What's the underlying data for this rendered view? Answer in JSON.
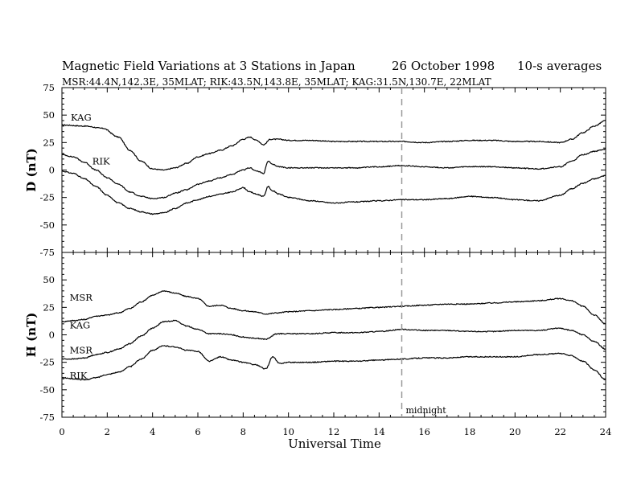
{
  "header": {
    "title_main": "Magnetic Field Variations at 3 Stations in Japan",
    "title_date": "26 October 1998",
    "title_avg": "10-s averages",
    "subtitle": "MSR:44.4N,142.3E, 35MLAT;  RIK:43.5N,143.8E, 35MLAT;  KAG:31.5N,130.7E, 22MLAT"
  },
  "chart_data": {
    "type": "line",
    "xlabel": "Universal Time",
    "xlim": [
      0,
      24
    ],
    "xticks": [
      0,
      2,
      4,
      6,
      8,
      10,
      12,
      14,
      16,
      18,
      20,
      22,
      24
    ],
    "annotation": {
      "text": "midnight",
      "x": 15
    },
    "panels": [
      {
        "id": "D",
        "ylabel": "D (nT)",
        "ylim": [
          -75,
          75
        ],
        "yticks": [
          75,
          50,
          25,
          0,
          -25,
          -50,
          -75
        ],
        "series": [
          {
            "name": "KAG",
            "x": [
              0,
              1,
              1.8,
              2.5,
              3,
              3.5,
              4,
              4.5,
              5,
              5.5,
              6,
              6.5,
              7,
              7.5,
              8,
              8.3,
              8.6,
              8.9,
              9.2,
              9.6,
              10,
              11,
              12,
              13,
              14,
              15,
              16,
              17,
              18,
              19,
              20,
              21,
              22,
              22.5,
              23,
              23.5,
              24
            ],
            "y": [
              41,
              40,
              38,
              30,
              18,
              8,
              1,
              0,
              2,
              6,
              12,
              15,
              18,
              22,
              28,
              30,
              27,
              23,
              28,
              28,
              27,
              27,
              26,
              26,
              26,
              26,
              25,
              26,
              27,
              27,
              26,
              26,
              25,
              28,
              34,
              40,
              45
            ]
          },
          {
            "name": "RIK",
            "x": [
              0,
              0.5,
              1,
              1.5,
              2,
              2.5,
              3,
              3.5,
              4,
              4.5,
              5,
              5.5,
              6,
              6.5,
              7,
              7.5,
              8,
              8.3,
              8.6,
              8.9,
              9.1,
              9.3,
              9.6,
              10,
              11,
              12,
              13,
              14,
              15,
              16,
              17,
              18,
              19,
              20,
              21,
              22,
              22.5,
              23,
              23.5,
              24
            ],
            "y": [
              14,
              12,
              7,
              0,
              -7,
              -13,
              -20,
              -24,
              -26,
              -25,
              -21,
              -18,
              -13,
              -10,
              -7,
              -4,
              0,
              2,
              -1,
              -3,
              8,
              5,
              3,
              2,
              2,
              2,
              2,
              3,
              4,
              3,
              2,
              3,
              3,
              2,
              1,
              3,
              8,
              14,
              17,
              19
            ]
          },
          {
            "name": "MSR",
            "x": [
              0,
              0.5,
              1,
              1.5,
              2,
              2.5,
              3,
              3.5,
              4,
              4.5,
              5,
              5.5,
              6,
              6.5,
              7,
              7.5,
              8,
              8.3,
              8.6,
              8.9,
              9.1,
              9.3,
              9.6,
              10,
              11,
              12,
              13,
              14,
              15,
              16,
              17,
              18,
              19,
              20,
              21,
              22,
              22.5,
              23,
              23.5,
              24
            ],
            "y": [
              -1,
              -3,
              -8,
              -15,
              -23,
              -30,
              -35,
              -38,
              -40,
              -39,
              -35,
              -30,
              -27,
              -24,
              -22,
              -20,
              -16,
              -20,
              -22,
              -24,
              -15,
              -19,
              -22,
              -25,
              -28,
              -30,
              -29,
              -28,
              -27,
              -27,
              -26,
              -24,
              -25,
              -27,
              -28,
              -23,
              -17,
              -12,
              -8,
              -5
            ]
          }
        ],
        "labels": [
          {
            "text": "KAG",
            "x": 0.25,
            "y": 45
          },
          {
            "text": "RIK",
            "x": 1.2,
            "y": 5
          }
        ]
      },
      {
        "id": "H",
        "ylabel": "H (nT)",
        "ylim": [
          -75,
          75
        ],
        "yticks": [
          75,
          50,
          25,
          0,
          -25,
          -50,
          -75
        ],
        "series": [
          {
            "name": "KAG",
            "x": [
              0,
              0.5,
              1,
              1.5,
              2,
              2.5,
              3,
              3.5,
              4,
              4.5,
              5,
              5.5,
              6,
              6.5,
              7,
              7.5,
              8,
              8.5,
              9,
              9.5,
              10,
              11,
              12,
              13,
              14,
              15,
              16,
              17,
              18,
              19,
              20,
              21,
              22,
              22.5,
              23,
              23.5,
              24
            ],
            "y": [
              12,
              13,
              14,
              17,
              18,
              20,
              24,
              30,
              36,
              40,
              38,
              35,
              33,
              26,
              27,
              24,
              22,
              21,
              19,
              20,
              21,
              22,
              23,
              24,
              25,
              26,
              27,
              28,
              28,
              29,
              30,
              31,
              33,
              31,
              26,
              18,
              10
            ]
          },
          {
            "name": "MSR",
            "x": [
              0,
              0.5,
              1,
              1.5,
              2,
              2.5,
              3,
              3.5,
              4,
              4.5,
              5,
              5.5,
              6,
              6.5,
              7,
              7.5,
              8,
              8.5,
              9,
              9.5,
              10,
              11,
              12,
              13,
              14,
              15,
              16,
              17,
              18,
              19,
              20,
              21,
              22,
              22.5,
              23,
              23.5,
              24
            ],
            "y": [
              -22,
              -22,
              -21,
              -18,
              -16,
              -13,
              -8,
              -1,
              6,
              12,
              13,
              8,
              5,
              1,
              1,
              0,
              -2,
              -3,
              -4,
              1,
              1,
              1,
              2,
              2,
              3,
              5,
              4,
              4,
              3,
              3,
              4,
              4,
              6,
              4,
              0,
              -6,
              -13
            ]
          },
          {
            "name": "RIK",
            "x": [
              0,
              0.5,
              1,
              1.5,
              2,
              2.5,
              3,
              3.5,
              4,
              4.5,
              5,
              5.5,
              6,
              6.5,
              7,
              7.5,
              8,
              8.5,
              9,
              9.3,
              9.6,
              10,
              11,
              12,
              13,
              14,
              15,
              16,
              17,
              18,
              19,
              20,
              21,
              22,
              22.5,
              23,
              23.5,
              24
            ],
            "y": [
              -39,
              -40,
              -41,
              -39,
              -36,
              -34,
              -29,
              -22,
              -14,
              -10,
              -11,
              -14,
              -15,
              -24,
              -20,
              -23,
              -25,
              -27,
              -31,
              -20,
              -26,
              -25,
              -25,
              -24,
              -24,
              -23,
              -22,
              -21,
              -21,
              -20,
              -20,
              -20,
              -18,
              -17,
              -19,
              -24,
              -32,
              -41
            ]
          }
        ],
        "labels": [
          {
            "text": "MSR",
            "x": 0.2,
            "y": 31
          },
          {
            "text": "KAG",
            "x": 0.2,
            "y": 6
          },
          {
            "text": "MSR",
            "x": 0.2,
            "y": -17
          },
          {
            "text": "RIK",
            "x": 0.2,
            "y": -40
          }
        ]
      }
    ]
  }
}
